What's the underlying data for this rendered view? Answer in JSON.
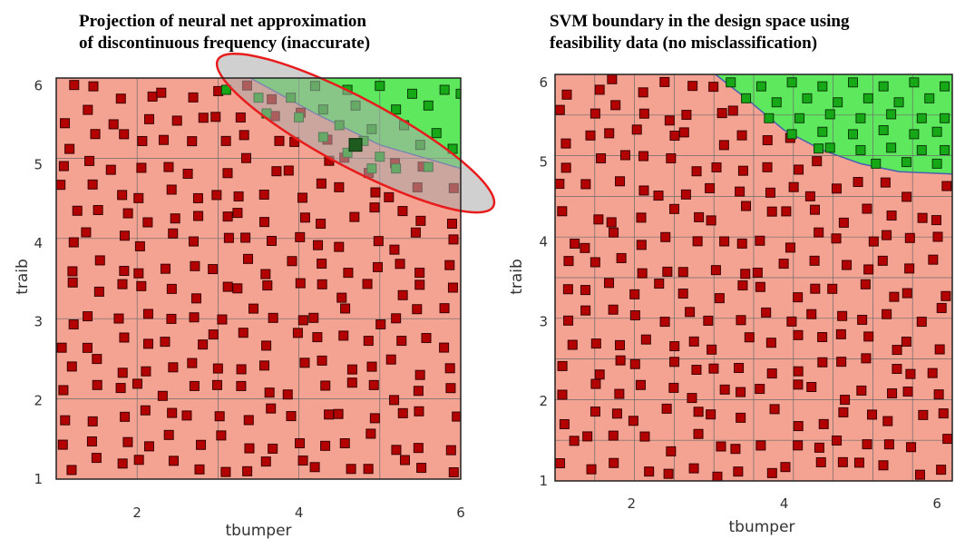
{
  "chart_data": [
    {
      "type": "scatter",
      "title_lines": [
        "Projection of neural net approximation",
        "of discontinuous frequency (inaccurate)"
      ],
      "xlabel": "tbumper",
      "ylabel": "traib",
      "xlim": [
        1,
        6
      ],
      "ylim": [
        1,
        6.1
      ],
      "xticks": [
        2,
        4,
        6
      ],
      "yticks": [
        1,
        2,
        3,
        4,
        5,
        6
      ],
      "grid": true,
      "regions": {
        "infeasible_color": "#f4a393",
        "feasible_color": "#5ee85e",
        "boundary": [
          [
            3.4,
            6.1
          ],
          [
            4.2,
            5.65
          ],
          [
            5.0,
            5.25
          ],
          [
            6.0,
            4.95
          ]
        ]
      },
      "highlight_ellipse": {
        "center": [
          4.7,
          5.4
        ],
        "label": "inaccurate region",
        "color": "#e81c1c"
      },
      "series": [
        {
          "class": "infeasible",
          "color": "#b30000",
          "count": 250
        },
        {
          "class": "feasible",
          "color": "#17a817",
          "points": [
            [
              3.1,
              5.95
            ],
            [
              3.5,
              5.85
            ],
            [
              3.9,
              5.85
            ],
            [
              4.2,
              6.0
            ],
            [
              4.6,
              5.95
            ],
            [
              5.0,
              6.0
            ],
            [
              5.4,
              5.9
            ],
            [
              5.8,
              5.95
            ],
            [
              6.0,
              5.9
            ],
            [
              4.3,
              5.7
            ],
            [
              4.7,
              5.75
            ],
            [
              5.2,
              5.7
            ],
            [
              5.6,
              5.75
            ],
            [
              4.0,
              5.6
            ],
            [
              4.5,
              5.5
            ],
            [
              4.9,
              5.45
            ],
            [
              5.3,
              5.5
            ],
            [
              5.7,
              5.4
            ],
            [
              3.6,
              5.65
            ],
            [
              4.3,
              5.35
            ],
            [
              4.8,
              5.3
            ],
            [
              5.5,
              5.25
            ],
            [
              5.9,
              5.2
            ],
            [
              4.6,
              5.15
            ],
            [
              5.0,
              5.1
            ],
            [
              5.2,
              4.95
            ],
            [
              5.6,
              4.97
            ],
            [
              4.9,
              4.95
            ],
            [
              4.7,
              5.25
            ]
          ]
        }
      ]
    },
    {
      "type": "scatter",
      "title_lines": [
        "SVM boundary in the design space using",
        "feasibility data (no misclassification)"
      ],
      "xlabel": "tbumper",
      "ylabel": "traib",
      "xlim": [
        1,
        6.2
      ],
      "ylim": [
        1,
        6.1
      ],
      "xticks": [
        2,
        4,
        6
      ],
      "yticks": [
        1,
        2,
        3,
        4,
        5,
        6
      ],
      "grid": true,
      "regions": {
        "infeasible_color": "#f4a393",
        "feasible_color": "#5ee85e",
        "boundary": [
          [
            3.1,
            6.1
          ],
          [
            3.5,
            5.8
          ],
          [
            4.0,
            5.4
          ],
          [
            4.5,
            5.15
          ],
          [
            5.0,
            4.98
          ],
          [
            5.5,
            4.88
          ],
          [
            6.2,
            4.85
          ]
        ]
      },
      "series": [
        {
          "class": "infeasible",
          "color": "#b30000",
          "count": 240
        },
        {
          "class": "feasible",
          "color": "#17a817",
          "points": [
            [
              3.3,
              6.0
            ],
            [
              3.7,
              5.95
            ],
            [
              4.1,
              6.0
            ],
            [
              4.5,
              5.95
            ],
            [
              4.9,
              6.0
            ],
            [
              5.3,
              5.95
            ],
            [
              5.7,
              6.0
            ],
            [
              6.1,
              5.95
            ],
            [
              3.5,
              5.8
            ],
            [
              3.9,
              5.75
            ],
            [
              4.3,
              5.8
            ],
            [
              4.7,
              5.75
            ],
            [
              5.1,
              5.8
            ],
            [
              5.5,
              5.75
            ],
            [
              5.9,
              5.8
            ],
            [
              3.8,
              5.55
            ],
            [
              4.2,
              5.55
            ],
            [
              4.6,
              5.6
            ],
            [
              5.0,
              5.55
            ],
            [
              5.4,
              5.6
            ],
            [
              5.8,
              5.55
            ],
            [
              6.1,
              5.55
            ],
            [
              4.1,
              5.35
            ],
            [
              4.5,
              5.38
            ],
            [
              4.9,
              5.35
            ],
            [
              5.3,
              5.4
            ],
            [
              5.7,
              5.35
            ],
            [
              6.0,
              5.38
            ],
            [
              4.6,
              5.18
            ],
            [
              5.0,
              5.15
            ],
            [
              5.4,
              5.18
            ],
            [
              5.8,
              5.15
            ],
            [
              6.1,
              5.15
            ],
            [
              5.2,
              4.98
            ],
            [
              5.6,
              5.0
            ],
            [
              6.0,
              4.98
            ],
            [
              4.45,
              5.17
            ]
          ]
        }
      ]
    }
  ]
}
